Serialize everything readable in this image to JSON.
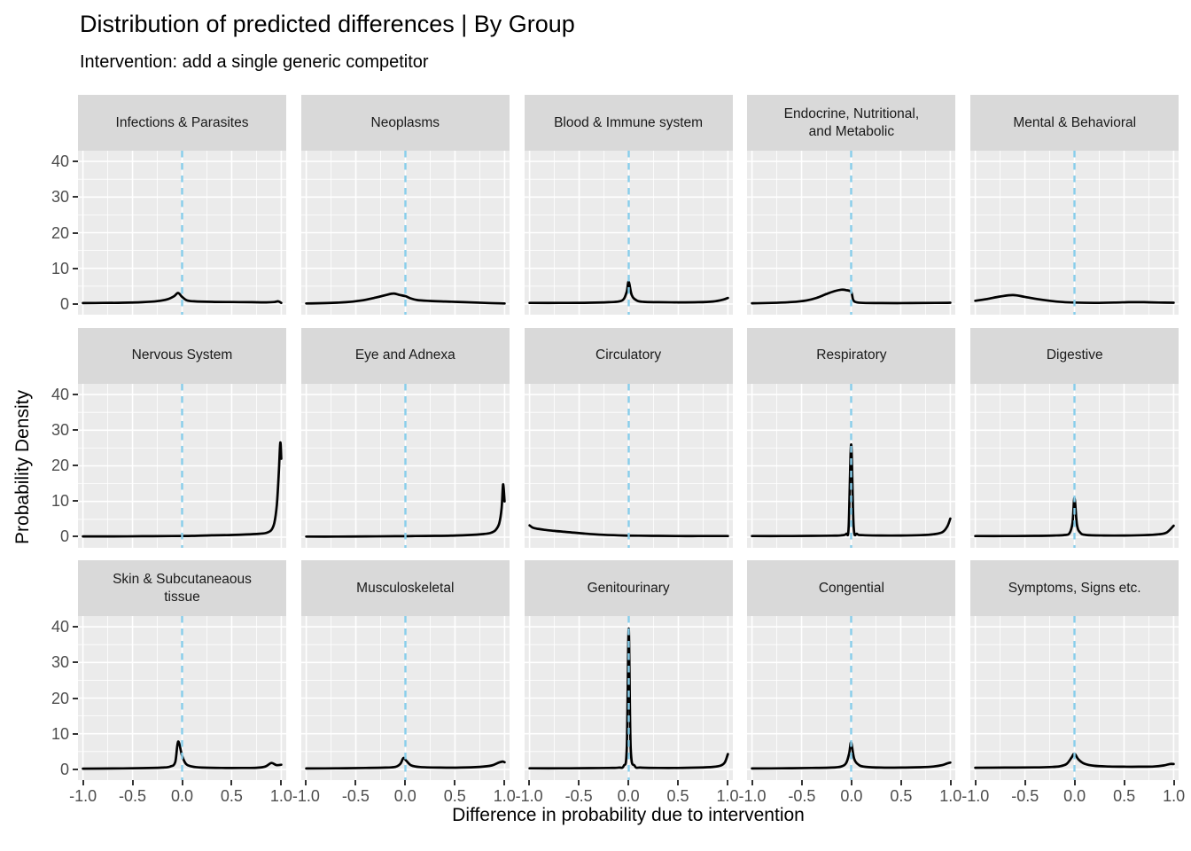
{
  "title": "Distribution of predicted differences | By Group",
  "subtitle": "Intervention: add a single generic competitor",
  "chart_data": {
    "type": "line",
    "description": "Faceted density curves (3 rows x 5 columns), one per diagnosis group, each with a dashed vertical reference line at x = 0",
    "xlabel": "Difference in probability due to intervention",
    "ylabel": "Probability Density",
    "x_tick_labels": [
      "-1.0",
      "-0.5",
      "0.0",
      "0.5",
      "1.0"
    ],
    "x_ticks": [
      -1.0,
      -0.5,
      0.0,
      0.5,
      1.0
    ],
    "y_tick_labels": [
      "0",
      "10",
      "20",
      "30",
      "40"
    ],
    "y_ticks": [
      0,
      10,
      20,
      30,
      40
    ],
    "xlim": [
      -1.05,
      1.05
    ],
    "ylim": [
      -3,
      43
    ],
    "x_minor_ticks": [
      -0.75,
      -0.25,
      0.25,
      0.75
    ],
    "y_minor_ticks": [
      5,
      15,
      25,
      35
    ],
    "grid": "white major and minor gridlines on gray panels",
    "legend": "none",
    "vline_x": 0,
    "colors": {
      "panel_bg": "#EBEBEB",
      "strip_bg": "#D9D9D9",
      "grid": "#FFFFFF",
      "curve": "#000000",
      "vline": "#87CEEB",
      "axis_text": "#4D4D4D",
      "tick_mark": "#333333",
      "title_text": "#000000"
    },
    "facets": [
      {
        "label": "Infections & Parasites",
        "points": [
          [
            -1,
            0.25
          ],
          [
            -0.8,
            0.3
          ],
          [
            -0.6,
            0.35
          ],
          [
            -0.4,
            0.5
          ],
          [
            -0.25,
            0.8
          ],
          [
            -0.15,
            1.3
          ],
          [
            -0.08,
            2.2
          ],
          [
            -0.04,
            3.1
          ],
          [
            0,
            2.0
          ],
          [
            0.05,
            1.0
          ],
          [
            0.12,
            0.75
          ],
          [
            0.3,
            0.6
          ],
          [
            0.5,
            0.55
          ],
          [
            0.7,
            0.5
          ],
          [
            0.85,
            0.45
          ],
          [
            0.93,
            0.55
          ],
          [
            0.97,
            0.75
          ],
          [
            1,
            0.3
          ]
        ]
      },
      {
        "label": "Neoplasms",
        "points": [
          [
            -1,
            0.15
          ],
          [
            -0.8,
            0.25
          ],
          [
            -0.6,
            0.5
          ],
          [
            -0.45,
            0.95
          ],
          [
            -0.3,
            1.8
          ],
          [
            -0.2,
            2.5
          ],
          [
            -0.12,
            2.95
          ],
          [
            -0.06,
            2.55
          ],
          [
            0,
            2.2
          ],
          [
            0.05,
            1.6
          ],
          [
            0.12,
            1.1
          ],
          [
            0.25,
            0.85
          ],
          [
            0.4,
            0.7
          ],
          [
            0.6,
            0.5
          ],
          [
            0.8,
            0.3
          ],
          [
            1,
            0.15
          ]
        ]
      },
      {
        "label": "Blood & Immune system",
        "points": [
          [
            -1,
            0.3
          ],
          [
            -0.7,
            0.3
          ],
          [
            -0.4,
            0.35
          ],
          [
            -0.2,
            0.5
          ],
          [
            -0.1,
            0.7
          ],
          [
            -0.05,
            1.4
          ],
          [
            -0.02,
            3.5
          ],
          [
            0,
            6.3
          ],
          [
            0.03,
            2.5
          ],
          [
            0.08,
            1.0
          ],
          [
            0.15,
            0.6
          ],
          [
            0.3,
            0.5
          ],
          [
            0.5,
            0.45
          ],
          [
            0.7,
            0.5
          ],
          [
            0.85,
            0.7
          ],
          [
            0.95,
            1.2
          ],
          [
            1,
            1.7
          ]
        ]
      },
      {
        "label": "Endocrine, Nutritional,\nand Metabolic",
        "points": [
          [
            -1,
            0.2
          ],
          [
            -0.8,
            0.3
          ],
          [
            -0.6,
            0.55
          ],
          [
            -0.45,
            1.0
          ],
          [
            -0.35,
            1.7
          ],
          [
            -0.25,
            2.8
          ],
          [
            -0.17,
            3.6
          ],
          [
            -0.1,
            4.0
          ],
          [
            -0.05,
            3.9
          ],
          [
            0,
            3.4
          ],
          [
            0.02,
            1.2
          ],
          [
            0.05,
            0.5
          ],
          [
            0.12,
            0.3
          ],
          [
            0.3,
            0.25
          ],
          [
            0.6,
            0.25
          ],
          [
            0.85,
            0.3
          ],
          [
            1,
            0.35
          ]
        ]
      },
      {
        "label": "Mental & Behavioral",
        "points": [
          [
            -1,
            0.9
          ],
          [
            -0.88,
            1.4
          ],
          [
            -0.75,
            2.1
          ],
          [
            -0.62,
            2.5
          ],
          [
            -0.5,
            2.0
          ],
          [
            -0.38,
            1.4
          ],
          [
            -0.25,
            0.9
          ],
          [
            -0.12,
            0.55
          ],
          [
            0,
            0.4
          ],
          [
            0.2,
            0.3
          ],
          [
            0.4,
            0.4
          ],
          [
            0.55,
            0.5
          ],
          [
            0.7,
            0.5
          ],
          [
            0.85,
            0.4
          ],
          [
            1,
            0.35
          ]
        ]
      },
      {
        "label": "Nervous System",
        "points": [
          [
            -1,
            0.2
          ],
          [
            -0.7,
            0.2
          ],
          [
            -0.4,
            0.25
          ],
          [
            -0.1,
            0.3
          ],
          [
            0.1,
            0.35
          ],
          [
            0.3,
            0.5
          ],
          [
            0.5,
            0.6
          ],
          [
            0.65,
            0.75
          ],
          [
            0.78,
            0.95
          ],
          [
            0.85,
            1.2
          ],
          [
            0.9,
            2.0
          ],
          [
            0.93,
            4.0
          ],
          [
            0.955,
            9.0
          ],
          [
            0.975,
            18.0
          ],
          [
            0.99,
            26.5
          ],
          [
            1,
            22.0
          ]
        ]
      },
      {
        "label": "Eye and Adnexa",
        "points": [
          [
            -1,
            0.15
          ],
          [
            -0.7,
            0.15
          ],
          [
            -0.4,
            0.2
          ],
          [
            -0.1,
            0.25
          ],
          [
            0.1,
            0.3
          ],
          [
            0.3,
            0.35
          ],
          [
            0.5,
            0.45
          ],
          [
            0.65,
            0.6
          ],
          [
            0.78,
            0.85
          ],
          [
            0.86,
            1.2
          ],
          [
            0.91,
            2.0
          ],
          [
            0.945,
            3.8
          ],
          [
            0.97,
            8.0
          ],
          [
            0.985,
            14.8
          ],
          [
            1,
            10.0
          ]
        ]
      },
      {
        "label": "Circulatory",
        "points": [
          [
            -1,
            3.3
          ],
          [
            -0.97,
            2.7
          ],
          [
            -0.92,
            2.35
          ],
          [
            -0.85,
            2.05
          ],
          [
            -0.75,
            1.75
          ],
          [
            -0.65,
            1.5
          ],
          [
            -0.55,
            1.25
          ],
          [
            -0.45,
            1.0
          ],
          [
            -0.35,
            0.8
          ],
          [
            -0.25,
            0.65
          ],
          [
            -0.15,
            0.55
          ],
          [
            -0.05,
            0.45
          ],
          [
            0.1,
            0.4
          ],
          [
            0.3,
            0.35
          ],
          [
            0.5,
            0.3
          ],
          [
            0.7,
            0.3
          ],
          [
            0.85,
            0.3
          ],
          [
            1,
            0.3
          ]
        ]
      },
      {
        "label": "Respiratory",
        "points": [
          [
            -1,
            0.3
          ],
          [
            -0.7,
            0.3
          ],
          [
            -0.4,
            0.35
          ],
          [
            -0.2,
            0.4
          ],
          [
            -0.1,
            0.5
          ],
          [
            -0.05,
            0.9
          ],
          [
            -0.025,
            3.0
          ],
          [
            0,
            26.0
          ],
          [
            0.025,
            3.0
          ],
          [
            0.06,
            0.9
          ],
          [
            0.12,
            0.55
          ],
          [
            0.3,
            0.45
          ],
          [
            0.5,
            0.45
          ],
          [
            0.7,
            0.55
          ],
          [
            0.83,
            0.8
          ],
          [
            0.92,
            1.4
          ],
          [
            0.97,
            3.0
          ],
          [
            1,
            5.2
          ]
        ]
      },
      {
        "label": "Digestive",
        "points": [
          [
            -1,
            0.3
          ],
          [
            -0.7,
            0.3
          ],
          [
            -0.4,
            0.35
          ],
          [
            -0.2,
            0.45
          ],
          [
            -0.1,
            0.6
          ],
          [
            -0.05,
            1.1
          ],
          [
            -0.02,
            4.0
          ],
          [
            0,
            11.0
          ],
          [
            0.025,
            3.5
          ],
          [
            0.06,
            1.2
          ],
          [
            0.12,
            0.6
          ],
          [
            0.3,
            0.45
          ],
          [
            0.5,
            0.45
          ],
          [
            0.7,
            0.55
          ],
          [
            0.85,
            0.8
          ],
          [
            0.93,
            1.3
          ],
          [
            1,
            3.2
          ]
        ]
      },
      {
        "label": "Skin & Subcutaneaous\ntissue",
        "points": [
          [
            -1,
            0.2
          ],
          [
            -0.7,
            0.25
          ],
          [
            -0.4,
            0.35
          ],
          [
            -0.2,
            0.5
          ],
          [
            -0.12,
            0.8
          ],
          [
            -0.07,
            2.0
          ],
          [
            -0.04,
            7.8
          ],
          [
            0,
            3.8
          ],
          [
            0.04,
            1.5
          ],
          [
            0.1,
            0.8
          ],
          [
            0.2,
            0.5
          ],
          [
            0.4,
            0.4
          ],
          [
            0.6,
            0.4
          ],
          [
            0.75,
            0.45
          ],
          [
            0.84,
            0.8
          ],
          [
            0.9,
            1.8
          ],
          [
            0.95,
            1.2
          ],
          [
            1,
            1.3
          ]
        ]
      },
      {
        "label": "Musculoskeletal",
        "points": [
          [
            -1,
            0.25
          ],
          [
            -0.7,
            0.3
          ],
          [
            -0.4,
            0.4
          ],
          [
            -0.2,
            0.5
          ],
          [
            -0.1,
            0.7
          ],
          [
            -0.05,
            1.6
          ],
          [
            -0.02,
            3.2
          ],
          [
            0.01,
            2.4
          ],
          [
            0.06,
            1.1
          ],
          [
            0.15,
            0.65
          ],
          [
            0.35,
            0.5
          ],
          [
            0.55,
            0.5
          ],
          [
            0.75,
            0.7
          ],
          [
            0.87,
            1.1
          ],
          [
            0.94,
            1.9
          ],
          [
            0.98,
            2.2
          ],
          [
            1,
            2.0
          ]
        ]
      },
      {
        "label": "Genitourinary",
        "points": [
          [
            -1,
            0.3
          ],
          [
            -0.7,
            0.3
          ],
          [
            -0.4,
            0.35
          ],
          [
            -0.2,
            0.4
          ],
          [
            -0.1,
            0.5
          ],
          [
            -0.05,
            1.0
          ],
          [
            -0.02,
            6.0
          ],
          [
            0,
            39.5
          ],
          [
            0.02,
            6.0
          ],
          [
            0.06,
            1.0
          ],
          [
            0.12,
            0.5
          ],
          [
            0.3,
            0.4
          ],
          [
            0.5,
            0.4
          ],
          [
            0.7,
            0.5
          ],
          [
            0.85,
            0.7
          ],
          [
            0.93,
            1.1
          ],
          [
            0.97,
            2.0
          ],
          [
            1,
            4.3
          ]
        ]
      },
      {
        "label": "Congential",
        "points": [
          [
            -1,
            0.25
          ],
          [
            -0.7,
            0.3
          ],
          [
            -0.4,
            0.4
          ],
          [
            -0.2,
            0.5
          ],
          [
            -0.1,
            0.8
          ],
          [
            -0.05,
            1.8
          ],
          [
            -0.02,
            4.5
          ],
          [
            0,
            7.6
          ],
          [
            0.03,
            3.0
          ],
          [
            0.08,
            1.2
          ],
          [
            0.15,
            0.7
          ],
          [
            0.3,
            0.5
          ],
          [
            0.5,
            0.5
          ],
          [
            0.7,
            0.6
          ],
          [
            0.83,
            0.8
          ],
          [
            0.92,
            1.2
          ],
          [
            0.97,
            1.7
          ],
          [
            1,
            1.9
          ]
        ]
      },
      {
        "label": "Symptoms, Signs etc.",
        "points": [
          [
            -1,
            0.45
          ],
          [
            -0.7,
            0.5
          ],
          [
            -0.4,
            0.55
          ],
          [
            -0.25,
            0.65
          ],
          [
            -0.15,
            0.85
          ],
          [
            -0.08,
            1.5
          ],
          [
            -0.03,
            3.3
          ],
          [
            0,
            4.4
          ],
          [
            0.04,
            2.8
          ],
          [
            0.1,
            1.6
          ],
          [
            0.2,
            1.0
          ],
          [
            0.35,
            0.8
          ],
          [
            0.5,
            0.75
          ],
          [
            0.65,
            0.75
          ],
          [
            0.8,
            0.8
          ],
          [
            0.9,
            1.1
          ],
          [
            0.96,
            1.5
          ],
          [
            1,
            1.5
          ]
        ]
      }
    ]
  }
}
